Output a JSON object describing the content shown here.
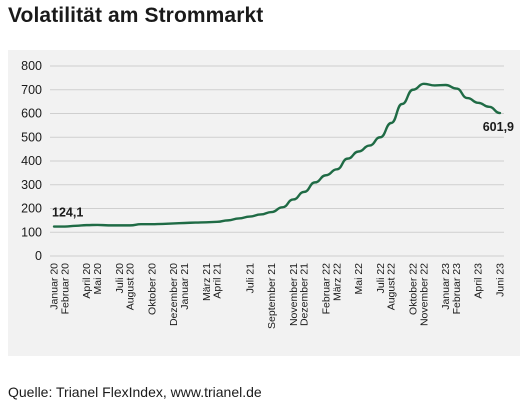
{
  "title": "Volatilität am Strommarkt",
  "source": "Quelle: Trianel FlexIndex, www.trianel.de",
  "colors": {
    "line": "#1f6b45",
    "grid": "#cfcfcf",
    "panel": "#f2f2f2",
    "text": "#1a1a1a"
  },
  "chart_data": {
    "type": "line",
    "title": "Volatilität am Strommarkt",
    "xlabel": "",
    "ylabel": "",
    "ylim": [
      0,
      800
    ],
    "yticks": [
      0,
      100,
      200,
      300,
      400,
      500,
      600,
      700,
      800
    ],
    "grid": true,
    "categories": [
      "Januar 20",
      "Februar 20",
      "April 20",
      "Mai 20",
      "Juli 20",
      "August 20",
      "Oktober 20",
      "Dezember 20",
      "Januar 21",
      "März 21",
      "April 21",
      "Juli 21",
      "September 21",
      "November 21",
      "Dezember 21",
      "Februar 22",
      "März 22",
      "Mai 22",
      "Juli 22",
      "August 22",
      "Oktober 22",
      "November 22",
      "Januar 23",
      "Februar 23",
      "April 23",
      "Juni 23"
    ],
    "series": [
      {
        "x": [
          "2020-01",
          "2020-02",
          "2020-03",
          "2020-04",
          "2020-05",
          "2020-06",
          "2020-07",
          "2020-08",
          "2020-09",
          "2020-10",
          "2020-11",
          "2020-12",
          "2021-01",
          "2021-02",
          "2021-03",
          "2021-04",
          "2021-05",
          "2021-06",
          "2021-07",
          "2021-08",
          "2021-09",
          "2021-10",
          "2021-11",
          "2021-12",
          "2022-01",
          "2022-02",
          "2022-03",
          "2022-04",
          "2022-05",
          "2022-06",
          "2022-07",
          "2022-08",
          "2022-09",
          "2022-10",
          "2022-11",
          "2022-12",
          "2023-01",
          "2023-02",
          "2023-03",
          "2023-04",
          "2023-05",
          "2023-06"
        ],
        "values": [
          124.1,
          124,
          127,
          130,
          131,
          129,
          129,
          129,
          134,
          134,
          135,
          137,
          139,
          141,
          142,
          144,
          150,
          158,
          166,
          175,
          185,
          205,
          238,
          270,
          310,
          340,
          365,
          410,
          440,
          465,
          500,
          560,
          640,
          700,
          725,
          718,
          720,
          705,
          665,
          645,
          628,
          601.9
        ],
        "point_labels": [
          {
            "index": 0,
            "text": "124,1"
          },
          {
            "index": 41,
            "text": "601,9"
          }
        ]
      }
    ]
  }
}
